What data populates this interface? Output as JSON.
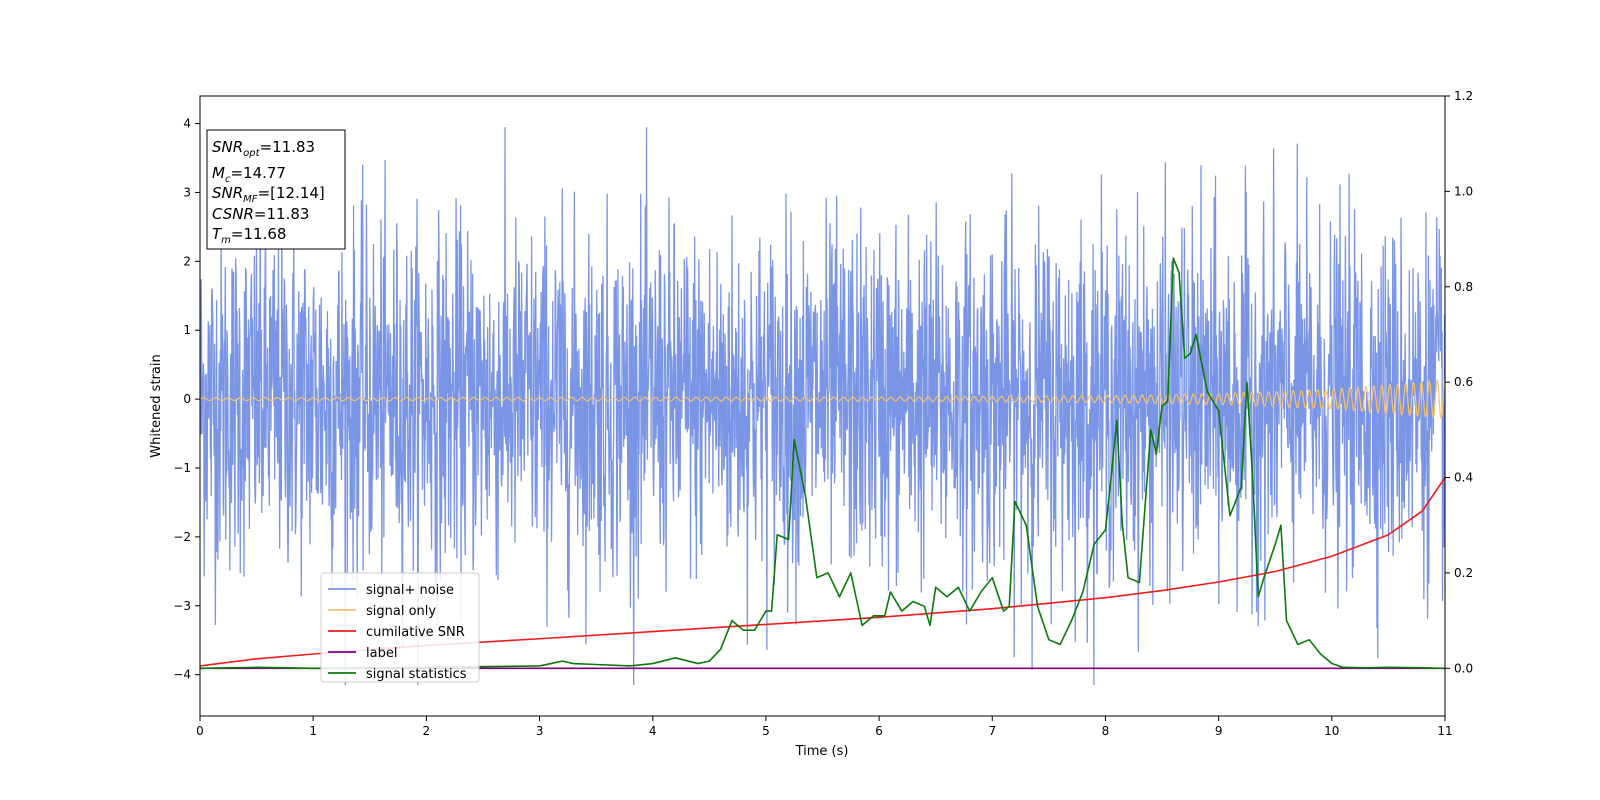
{
  "chart_data": {
    "type": "line",
    "xlabel": "Time (s)",
    "ylabel": "Whitened strain",
    "xlim": [
      0,
      11
    ],
    "ylim_left": [
      -4.6,
      4.4
    ],
    "ylim_right": [
      -0.1,
      1.2
    ],
    "xticks": [
      "0",
      "1",
      "2",
      "3",
      "4",
      "5",
      "6",
      "7",
      "8",
      "9",
      "10",
      "11"
    ],
    "yticks_left": [
      "4",
      "3",
      "2",
      "1",
      "0",
      "−1",
      "−2",
      "−3",
      "−4"
    ],
    "yticks_right": [
      "1.2",
      "1.0",
      "0.8",
      "0.6",
      "0.4",
      "0.2",
      "0.0"
    ],
    "annotation": [
      {
        "main": "SNR",
        "sub": "opt",
        "rest": "=11.83"
      },
      {
        "main": "M",
        "sub": "c",
        "rest": "=14.77"
      },
      {
        "main": "SNR",
        "sub": "MF",
        "rest": "=[12.14]"
      },
      {
        "main": "CSNR",
        "sub": "",
        "rest": "=11.83"
      },
      {
        "main": "T",
        "sub": "m",
        "rest": "=11.68"
      }
    ],
    "legend_position": "lower-left",
    "series": [
      {
        "name": "signal+ noise",
        "axis": "left",
        "color": "#7a94e6",
        "description_values": "noise band, approx range -4.2 to 4.0"
      },
      {
        "name": "signal only",
        "axis": "left",
        "color": "#f5c26b",
        "envelope": {
          "t": [
            0,
            6,
            8,
            9,
            10,
            11
          ],
          "amp": [
            0.02,
            0.03,
            0.05,
            0.08,
            0.14,
            0.28
          ]
        }
      },
      {
        "name": "cumilative SNR",
        "axis": "right",
        "color": "#ee1c1c",
        "x": [
          0,
          0.5,
          1,
          2,
          3,
          4,
          5,
          6,
          7,
          8,
          8.5,
          9,
          9.5,
          10,
          10.5,
          10.8,
          11
        ],
        "y": [
          0.005,
          0.02,
          0.03,
          0.048,
          0.062,
          0.077,
          0.092,
          0.107,
          0.125,
          0.148,
          0.163,
          0.181,
          0.203,
          0.235,
          0.28,
          0.33,
          0.4
        ]
      },
      {
        "name": "label",
        "axis": "right",
        "color": "#800080",
        "x": [
          0,
          11
        ],
        "y": [
          0,
          0
        ]
      },
      {
        "name": "signal statistics",
        "axis": "right",
        "color": "#0a7a0a",
        "x": [
          0,
          0.5,
          1,
          2,
          3,
          3.1,
          3.2,
          3.3,
          3.5,
          3.8,
          4.0,
          4.2,
          4.4,
          4.5,
          4.6,
          4.7,
          4.8,
          4.9,
          5.0,
          5.05,
          5.1,
          5.2,
          5.25,
          5.35,
          5.45,
          5.55,
          5.65,
          5.75,
          5.85,
          5.95,
          6.05,
          6.1,
          6.2,
          6.3,
          6.4,
          6.45,
          6.5,
          6.6,
          6.7,
          6.8,
          6.9,
          7.0,
          7.1,
          7.15,
          7.2,
          7.3,
          7.4,
          7.5,
          7.6,
          7.7,
          7.8,
          7.9,
          8.0,
          8.05,
          8.1,
          8.15,
          8.2,
          8.3,
          8.4,
          8.45,
          8.5,
          8.55,
          8.6,
          8.65,
          8.7,
          8.75,
          8.8,
          8.9,
          9.0,
          9.1,
          9.2,
          9.25,
          9.3,
          9.35,
          9.4,
          9.5,
          9.55,
          9.6,
          9.7,
          9.8,
          9.9,
          10.0,
          10.1,
          10.3,
          10.5,
          10.8,
          11.0
        ],
        "y": [
          0.0,
          0.002,
          0.0,
          0.002,
          0.005,
          0.01,
          0.015,
          0.01,
          0.008,
          0.005,
          0.01,
          0.022,
          0.01,
          0.015,
          0.04,
          0.1,
          0.08,
          0.08,
          0.12,
          0.12,
          0.28,
          0.27,
          0.48,
          0.36,
          0.19,
          0.2,
          0.15,
          0.2,
          0.09,
          0.11,
          0.11,
          0.16,
          0.12,
          0.14,
          0.13,
          0.09,
          0.17,
          0.15,
          0.17,
          0.12,
          0.16,
          0.19,
          0.12,
          0.13,
          0.35,
          0.3,
          0.13,
          0.06,
          0.05,
          0.1,
          0.16,
          0.26,
          0.29,
          0.4,
          0.52,
          0.3,
          0.19,
          0.18,
          0.5,
          0.45,
          0.55,
          0.56,
          0.86,
          0.83,
          0.65,
          0.66,
          0.7,
          0.58,
          0.54,
          0.32,
          0.38,
          0.6,
          0.4,
          0.15,
          0.19,
          0.26,
          0.3,
          0.1,
          0.05,
          0.06,
          0.03,
          0.01,
          0.002,
          0.001,
          0.002,
          0.001,
          0.0
        ]
      }
    ]
  }
}
